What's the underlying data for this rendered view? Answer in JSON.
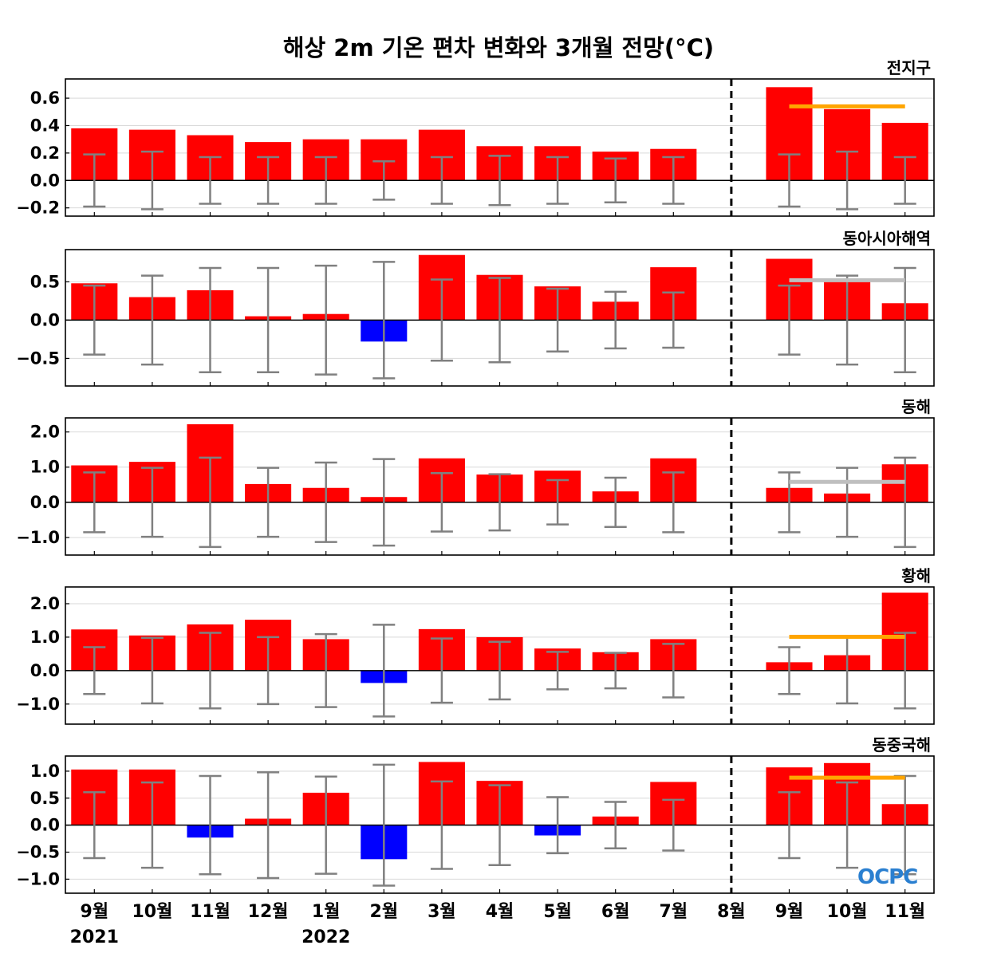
{
  "title": "해상 2m 기온 편차 변화와 3개월 전망(°C)",
  "logo_text": "OCPC",
  "colors": {
    "positive": "#ff0000",
    "negative": "#0000ff",
    "error": "#808080",
    "forecast_orange": "#ffa500",
    "forecast_gray": "#bfbfbf"
  },
  "chart_data": {
    "type": "bar",
    "categories": [
      "9월",
      "10월",
      "11월",
      "12월",
      "1월",
      "2월",
      "3월",
      "4월",
      "5월",
      "6월",
      "7월",
      "8월",
      "9월",
      "10월",
      "11월"
    ],
    "year_labels": [
      {
        "index": 0,
        "text": "2021"
      },
      {
        "index": 4,
        "text": "2022"
      }
    ],
    "forecast_divider_after_index": 11,
    "grid": true,
    "panels": [
      {
        "name": "전지구",
        "ylim": [
          -0.26,
          0.74
        ],
        "yticks": [
          -0.2,
          0.0,
          0.2,
          0.4,
          0.6
        ],
        "ytick_labels": [
          "−0.2",
          "0.0",
          "0.2",
          "0.4",
          "0.6"
        ],
        "values": [
          0.38,
          0.37,
          0.33,
          0.28,
          0.3,
          0.3,
          0.37,
          0.25,
          0.25,
          0.21,
          0.23,
          0.0,
          0.68,
          0.52,
          0.42
        ],
        "errors": [
          0.19,
          0.21,
          0.17,
          0.17,
          0.17,
          0.14,
          0.17,
          0.18,
          0.17,
          0.16,
          0.17,
          null,
          0.19,
          0.21,
          0.17
        ],
        "forecast_line": {
          "from_index": 12,
          "to_index": 14,
          "value": 0.54,
          "color": "#ffa500"
        }
      },
      {
        "name": "동아시아해역",
        "ylim": [
          -0.86,
          0.92
        ],
        "yticks": [
          -0.5,
          0.0,
          0.5
        ],
        "ytick_labels": [
          "−0.5",
          "0.0",
          "0.5"
        ],
        "values": [
          0.48,
          0.3,
          0.39,
          0.05,
          0.08,
          -0.28,
          0.85,
          0.59,
          0.44,
          0.24,
          0.69,
          0.0,
          0.8,
          0.53,
          0.22
        ],
        "errors": [
          0.45,
          0.58,
          0.68,
          0.68,
          0.71,
          0.76,
          0.53,
          0.55,
          0.41,
          0.37,
          0.36,
          null,
          0.45,
          0.58,
          0.68
        ],
        "forecast_line": {
          "from_index": 12,
          "to_index": 14,
          "value": 0.52,
          "color": "#bfbfbf"
        }
      },
      {
        "name": "동해",
        "ylim": [
          -1.5,
          2.4
        ],
        "yticks": [
          -1.0,
          0.0,
          1.0,
          2.0
        ],
        "ytick_labels": [
          "−1.0",
          "0.0",
          "1.0",
          "2.0"
        ],
        "values": [
          1.05,
          1.15,
          2.22,
          0.52,
          0.41,
          0.15,
          1.25,
          0.79,
          0.9,
          0.31,
          1.25,
          0.0,
          0.41,
          0.25,
          1.08
        ],
        "errors": [
          0.85,
          0.98,
          1.27,
          0.98,
          1.13,
          1.23,
          0.83,
          0.8,
          0.63,
          0.7,
          0.85,
          null,
          0.85,
          0.98,
          1.27
        ],
        "forecast_line": {
          "from_index": 12,
          "to_index": 14,
          "value": 0.58,
          "color": "#bfbfbf"
        }
      },
      {
        "name": "황해",
        "ylim": [
          -1.6,
          2.5
        ],
        "yticks": [
          -1.0,
          0.0,
          1.0,
          2.0
        ],
        "ytick_labels": [
          "−1.0",
          "0.0",
          "1.0",
          "2.0"
        ],
        "values": [
          1.23,
          1.05,
          1.38,
          1.52,
          0.94,
          -0.37,
          1.24,
          1.0,
          0.66,
          0.55,
          0.94,
          0.0,
          0.25,
          0.46,
          2.33
        ],
        "errors": [
          0.7,
          0.98,
          1.13,
          1.0,
          1.09,
          1.37,
          0.96,
          0.86,
          0.56,
          0.53,
          0.8,
          null,
          0.7,
          0.98,
          1.13
        ],
        "forecast_line": {
          "from_index": 12,
          "to_index": 14,
          "value": 1.01,
          "color": "#ffa500"
        }
      },
      {
        "name": "동중국해",
        "ylim": [
          -1.26,
          1.28
        ],
        "yticks": [
          -1.0,
          -0.5,
          0.0,
          0.5,
          1.0
        ],
        "ytick_labels": [
          "−1.0",
          "−0.5",
          "0.0",
          "0.5",
          "1.0"
        ],
        "values": [
          1.03,
          1.03,
          -0.23,
          0.12,
          0.6,
          -0.63,
          1.17,
          0.82,
          -0.19,
          0.16,
          0.8,
          0.0,
          1.07,
          1.15,
          0.39
        ],
        "errors": [
          0.61,
          0.79,
          0.91,
          0.98,
          0.9,
          1.12,
          0.81,
          0.74,
          0.52,
          0.43,
          0.47,
          null,
          0.61,
          0.79,
          0.91
        ],
        "forecast_line": {
          "from_index": 12,
          "to_index": 14,
          "value": 0.88,
          "color": "#ffa500"
        }
      }
    ]
  }
}
